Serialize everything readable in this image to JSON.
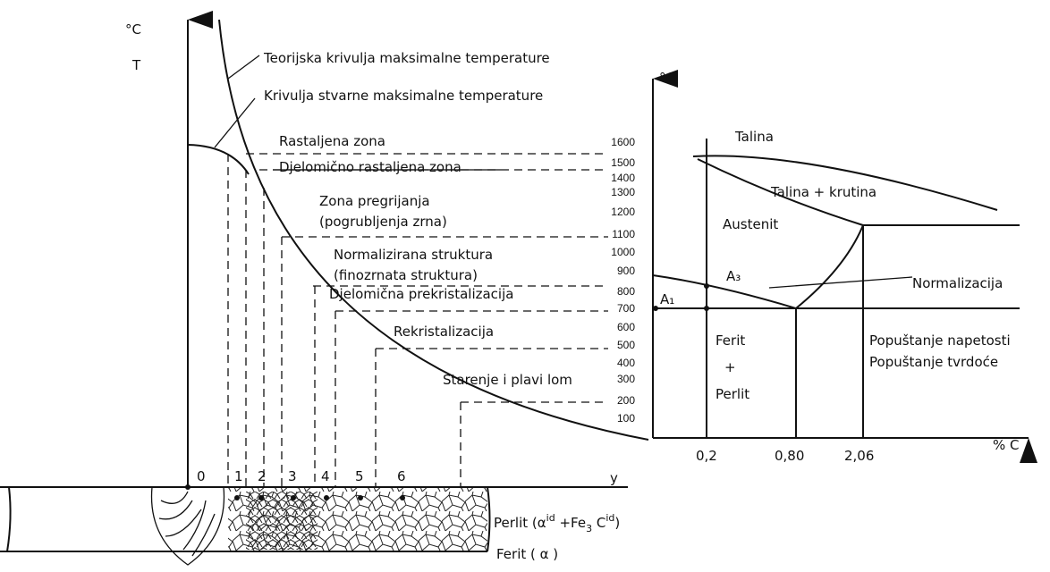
{
  "left_axis": {
    "unit": "°C",
    "symbol": "T"
  },
  "curves": {
    "theoretical": "Teorijska krivulja maksimalne temperature",
    "real": "Krivulja stvarne maksimalne temperature"
  },
  "zones": [
    "Rastaljena zona",
    "Djelomično rastaljena zona",
    "Zona pregrijanja",
    "(pogrubljenja zrna)",
    "Normalizirana struktura",
    "(finozrnata struktura)",
    "Djelomična prekristalizacija",
    "Rekristalizacija",
    "Starenje i plavi lom"
  ],
  "temperature_scale": [
    1600,
    1500,
    1400,
    1300,
    1200,
    1100,
    1000,
    900,
    800,
    700,
    600,
    500,
    400,
    300,
    200,
    100
  ],
  "phase_diagram": {
    "unit": "°C",
    "regions": [
      "Talina",
      "Talina + krutina",
      "Austenit",
      "Ferit",
      "+",
      "Perlit"
    ],
    "lines": {
      "a3": "A₃",
      "a1": "A₁"
    },
    "normalization": "Normalizacija",
    "tempering": [
      "Popuštanje napetosti",
      "Popuštanje tvrdoće"
    ],
    "x_labels": [
      "0,2",
      "0,80",
      "2,06"
    ],
    "x_axis": "% C"
  },
  "weld": {
    "zone_numbers": [
      "0",
      "1",
      "2",
      "3",
      "4",
      "5",
      "6"
    ],
    "axis": "y",
    "perlit": [
      "Perlit (",
      "α",
      "id",
      " +Fe",
      "3",
      " C",
      "id",
      ")"
    ],
    "ferit": "Ferit ( α )"
  }
}
